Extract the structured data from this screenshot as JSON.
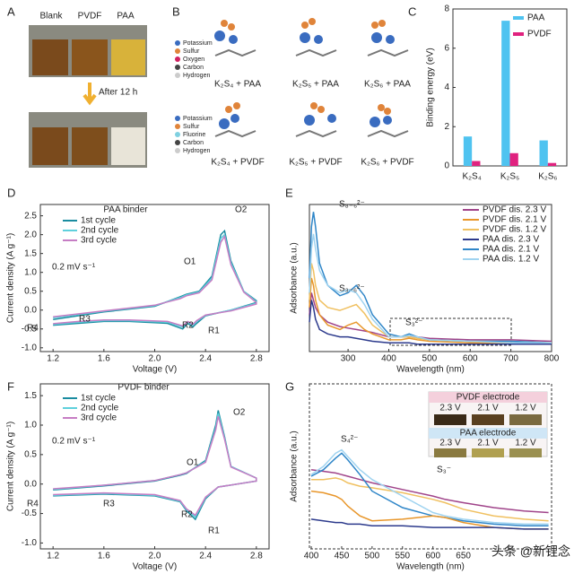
{
  "figure": {
    "a": {
      "label": "A",
      "vials": [
        "Blank",
        "PVDF",
        "PAA"
      ],
      "note": "After 12 h"
    },
    "b": {
      "label": "B",
      "legend_top": [
        "Potassium",
        "Sulfur",
        "Oxygen",
        "Carbon",
        "Hydrogen"
      ],
      "legend_bottom": [
        "Potassium",
        "Sulfur",
        "Fluorine",
        "Carbon",
        "Hydrogen"
      ],
      "captions": [
        "K₂S₄ + PAA",
        "K₂S₅ + PAA",
        "K₂S₆ + PAA",
        "K₂S₄ + PVDF",
        "K₂S₅ + PVDF",
        "K₂S₆ + PVDF"
      ]
    },
    "watermark": "头条 @新锂念"
  },
  "chart_data": [
    {
      "type": "bar",
      "label": "C",
      "y_label": "Binding energy (eV)",
      "categories": [
        "K₂S₄",
        "K₂S₅",
        "K₂S₆"
      ],
      "series": [
        {
          "name": "PAA",
          "color": "#4fc3f0",
          "values": [
            1.5,
            7.4,
            1.3
          ]
        },
        {
          "name": "PVDF",
          "color": "#e0227f",
          "values": [
            0.25,
            0.65,
            0.15
          ]
        }
      ],
      "ylim": [
        0,
        8
      ],
      "yticks": [
        0,
        2,
        4,
        6,
        8
      ]
    },
    {
      "type": "line",
      "label": "D",
      "title": "PAA binder",
      "x_label": "Voltage (V)",
      "y_label": "Current density (A g⁻¹)",
      "annotations": [
        "0.2 mV s⁻¹",
        "O1",
        "O2",
        "R1",
        "R2",
        "R3",
        "R4"
      ],
      "xlim": [
        1.1,
        2.9
      ],
      "xticks": [
        1.2,
        1.6,
        {
          "value": 2,
          "label": "2.0"
        },
        2.4,
        2.8
      ],
      "ylim": [
        -1.1,
        2.8
      ],
      "yticks": [
        {
          "value": -1,
          "label": "-1.0"
        },
        -0.5,
        {
          "value": 0,
          "label": "0.0"
        },
        0.5,
        {
          "value": 1,
          "label": "1.0"
        },
        1.5,
        {
          "value": 2,
          "label": "2.0"
        },
        2.5
      ],
      "series": [
        {
          "name": "1st cycle",
          "color": "#1a8ca0",
          "x": [
            1.2,
            1.6,
            2.0,
            2.2,
            2.25,
            2.35,
            2.45,
            2.52,
            2.55,
            2.6,
            2.7,
            2.8,
            2.8,
            2.6,
            2.4,
            2.33,
            2.3,
            2.26,
            2.22,
            2.1,
            1.8,
            1.6,
            1.4,
            1.2
          ],
          "values": [
            -0.25,
            -0.05,
            0.1,
            0.35,
            0.42,
            0.5,
            0.9,
            2.0,
            2.1,
            1.3,
            0.5,
            0.25,
            0.2,
            0.0,
            -0.15,
            -0.35,
            -0.45,
            -0.35,
            -0.5,
            -0.35,
            -0.3,
            -0.3,
            -0.35,
            -0.4
          ]
        },
        {
          "name": "2nd cycle",
          "color": "#5fd0dc",
          "x": [
            1.2,
            1.6,
            2.0,
            2.2,
            2.25,
            2.35,
            2.45,
            2.52,
            2.55,
            2.6,
            2.7,
            2.8,
            2.8,
            2.6,
            2.4,
            2.33,
            2.3,
            2.26,
            2.22,
            2.1,
            1.8,
            1.6,
            1.4,
            1.2
          ],
          "values": [
            -0.2,
            -0.03,
            0.12,
            0.33,
            0.4,
            0.48,
            0.85,
            1.9,
            2.0,
            1.25,
            0.5,
            0.22,
            0.18,
            0.0,
            -0.14,
            -0.3,
            -0.4,
            -0.33,
            -0.45,
            -0.32,
            -0.28,
            -0.28,
            -0.32,
            -0.38
          ]
        },
        {
          "name": "3rd cycle",
          "color": "#c67dc4",
          "x": [
            1.2,
            1.6,
            2.0,
            2.2,
            2.25,
            2.35,
            2.45,
            2.52,
            2.55,
            2.6,
            2.7,
            2.8,
            2.8,
            2.6,
            2.4,
            2.33,
            2.3,
            2.26,
            2.22,
            2.1,
            1.8,
            1.6,
            1.4,
            1.2
          ],
          "values": [
            -0.18,
            -0.02,
            0.13,
            0.3,
            0.38,
            0.46,
            0.8,
            1.8,
            1.95,
            1.2,
            0.48,
            0.2,
            0.16,
            -0.02,
            -0.13,
            -0.28,
            -0.38,
            -0.3,
            -0.42,
            -0.3,
            -0.26,
            -0.26,
            -0.3,
            -0.36
          ]
        }
      ]
    },
    {
      "type": "line",
      "label": "E",
      "x_label": "Wavelength (nm)",
      "y_label": "Adsorbance (a.u.)",
      "annotations": [
        "S₈₋₆²⁻",
        "S₃₋₆²⁻",
        "S₃²⁻"
      ],
      "xlim": [
        205,
        800
      ],
      "xticks": [
        300,
        400,
        500,
        600,
        700,
        800
      ],
      "ylim": [
        0,
        1
      ],
      "x": [
        205,
        210,
        215,
        220,
        230,
        250,
        280,
        300,
        320,
        340,
        360,
        400,
        430,
        450,
        470,
        500,
        600,
        700,
        800
      ],
      "series": [
        {
          "name": "PVDF dis. 2.3 V",
          "color": "#a0448a",
          "values": [
            0.25,
            0.4,
            0.35,
            0.3,
            0.25,
            0.2,
            0.17,
            0.16,
            0.15,
            0.14,
            0.13,
            0.1,
            0.1,
            0.1,
            0.1,
            0.09,
            0.08,
            0.08,
            0.07
          ]
        },
        {
          "name": "PVDF dis. 2.1 V",
          "color": "#e8962a",
          "values": [
            0.3,
            0.5,
            0.45,
            0.35,
            0.25,
            0.18,
            0.15,
            0.18,
            0.2,
            0.15,
            0.12,
            0.08,
            0.08,
            0.09,
            0.08,
            0.07,
            0.06,
            0.06,
            0.06
          ]
        },
        {
          "name": "PVDF dis. 1.2 V",
          "color": "#f0c060",
          "values": [
            0.35,
            0.6,
            0.55,
            0.45,
            0.35,
            0.3,
            0.28,
            0.3,
            0.32,
            0.26,
            0.18,
            0.1,
            0.1,
            0.1,
            0.09,
            0.08,
            0.07,
            0.07,
            0.06
          ]
        },
        {
          "name": "PAA dis. 2.3 V",
          "color": "#2c3a8c",
          "values": [
            0.2,
            0.35,
            0.3,
            0.22,
            0.15,
            0.12,
            0.1,
            0.1,
            0.09,
            0.08,
            0.07,
            0.06,
            0.06,
            0.06,
            0.05,
            0.05,
            0.05,
            0.05,
            0.05
          ]
        },
        {
          "name": "PAA dis. 2.1 V",
          "color": "#2f86c8",
          "values": [
            0.5,
            0.85,
            0.95,
            0.85,
            0.6,
            0.45,
            0.38,
            0.4,
            0.45,
            0.38,
            0.25,
            0.12,
            0.1,
            0.12,
            0.1,
            0.08,
            0.07,
            0.07,
            0.06
          ]
        },
        {
          "name": "PAA dis. 1.2 V",
          "color": "#9fd3f0",
          "values": [
            0.4,
            0.7,
            0.8,
            0.7,
            0.55,
            0.45,
            0.4,
            0.42,
            0.4,
            0.32,
            0.22,
            0.1,
            0.1,
            0.11,
            0.1,
            0.08,
            0.07,
            0.06,
            0.06
          ]
        }
      ]
    },
    {
      "type": "line",
      "label": "F",
      "title": "PVDF binder",
      "x_label": "Voltage (V)",
      "y_label": "Current density (A g⁻¹)",
      "annotations": [
        "0.2 mV s⁻¹",
        "O1",
        "O2",
        "R1",
        "R2",
        "R3",
        "R4"
      ],
      "xlim": [
        1.1,
        2.9
      ],
      "xticks": [
        1.2,
        1.6,
        {
          "value": 2,
          "label": "2.0"
        },
        2.4,
        2.8
      ],
      "ylim": [
        -1.1,
        1.7
      ],
      "yticks": [
        {
          "value": -1,
          "label": "-1.0"
        },
        -0.5,
        {
          "value": 0,
          "label": "0.0"
        },
        0.5,
        {
          "value": 1,
          "label": "1.0"
        },
        1.5
      ],
      "series": [
        {
          "name": "1st cycle",
          "color": "#1a8ca0",
          "x": [
            1.2,
            1.6,
            2.0,
            2.2,
            2.25,
            2.4,
            2.48,
            2.5,
            2.55,
            2.6,
            2.8,
            2.8,
            2.5,
            2.4,
            2.32,
            2.25,
            2.2,
            2.0,
            1.6,
            1.2
          ],
          "values": [
            -0.1,
            -0.03,
            0.05,
            0.15,
            0.18,
            0.4,
            1.0,
            1.25,
            0.8,
            0.3,
            0.1,
            0.05,
            -0.05,
            -0.25,
            -0.6,
            -0.45,
            -0.3,
            -0.2,
            -0.17,
            -0.2
          ]
        },
        {
          "name": "2nd cycle",
          "color": "#5fd0dc",
          "x": [
            1.2,
            1.6,
            2.0,
            2.2,
            2.25,
            2.4,
            2.48,
            2.5,
            2.55,
            2.6,
            2.8,
            2.8,
            2.5,
            2.4,
            2.32,
            2.25,
            2.2,
            2.0,
            1.6,
            1.2
          ],
          "values": [
            -0.09,
            -0.02,
            0.06,
            0.16,
            0.19,
            0.38,
            0.95,
            1.2,
            0.78,
            0.3,
            0.1,
            0.05,
            -0.05,
            -0.23,
            -0.56,
            -0.43,
            -0.29,
            -0.19,
            -0.16,
            -0.19
          ]
        },
        {
          "name": "3rd cycle",
          "color": "#c67dc4",
          "x": [
            1.2,
            1.6,
            2.0,
            2.2,
            2.25,
            2.4,
            2.48,
            2.5,
            2.55,
            2.6,
            2.8,
            2.8,
            2.5,
            2.4,
            2.32,
            2.25,
            2.2,
            2.0,
            1.6,
            1.2
          ],
          "values": [
            -0.08,
            -0.02,
            0.06,
            0.16,
            0.19,
            0.37,
            0.92,
            1.15,
            0.76,
            0.29,
            0.1,
            0.05,
            -0.05,
            -0.22,
            -0.53,
            -0.42,
            -0.28,
            -0.18,
            -0.15,
            -0.18
          ]
        }
      ]
    },
    {
      "type": "line",
      "label": "G",
      "x_label": "Wavelength (nm)",
      "y_label": "Adsorbance (a.u.)",
      "annotations": [
        "S₄²⁻",
        "S₃⁻"
      ],
      "inset": {
        "titles": [
          "PVDF electrode",
          "PAA electrode"
        ],
        "voltages": [
          "2.3 V",
          "2.1 V",
          "1.2 V"
        ]
      },
      "xlim": [
        397,
        795
      ],
      "xticks": [
        400,
        450,
        500,
        550,
        600,
        650
      ],
      "ylim": [
        0,
        1
      ],
      "x": [
        400,
        420,
        440,
        450,
        460,
        480,
        500,
        550,
        600,
        620,
        650,
        700,
        750,
        790
      ],
      "series": [
        {
          "color": "#a0448a",
          "values": [
            0.48,
            0.47,
            0.46,
            0.45,
            0.44,
            0.42,
            0.4,
            0.36,
            0.32,
            0.3,
            0.28,
            0.25,
            0.23,
            0.22
          ]
        },
        {
          "color": "#f0c060",
          "values": [
            0.42,
            0.42,
            0.43,
            0.42,
            0.4,
            0.38,
            0.37,
            0.34,
            0.3,
            0.28,
            0.24,
            0.2,
            0.18,
            0.17
          ]
        },
        {
          "color": "#9fd3f0",
          "values": [
            0.45,
            0.5,
            0.58,
            0.6,
            0.56,
            0.48,
            0.42,
            0.32,
            0.22,
            0.2,
            0.18,
            0.16,
            0.15,
            0.15
          ]
        },
        {
          "color": "#2f86c8",
          "values": [
            0.44,
            0.48,
            0.55,
            0.58,
            0.54,
            0.45,
            0.35,
            0.25,
            0.2,
            0.19,
            0.17,
            0.15,
            0.14,
            0.14
          ]
        },
        {
          "color": "#e8962a",
          "values": [
            0.35,
            0.34,
            0.32,
            0.3,
            0.26,
            0.2,
            0.17,
            0.18,
            0.2,
            0.19,
            0.16,
            0.13,
            0.12,
            0.12
          ]
        },
        {
          "color": "#2c3a8c",
          "values": [
            0.18,
            0.17,
            0.16,
            0.16,
            0.15,
            0.15,
            0.14,
            0.14,
            0.13,
            0.13,
            0.13,
            0.13,
            0.12,
            0.12
          ]
        }
      ]
    }
  ]
}
